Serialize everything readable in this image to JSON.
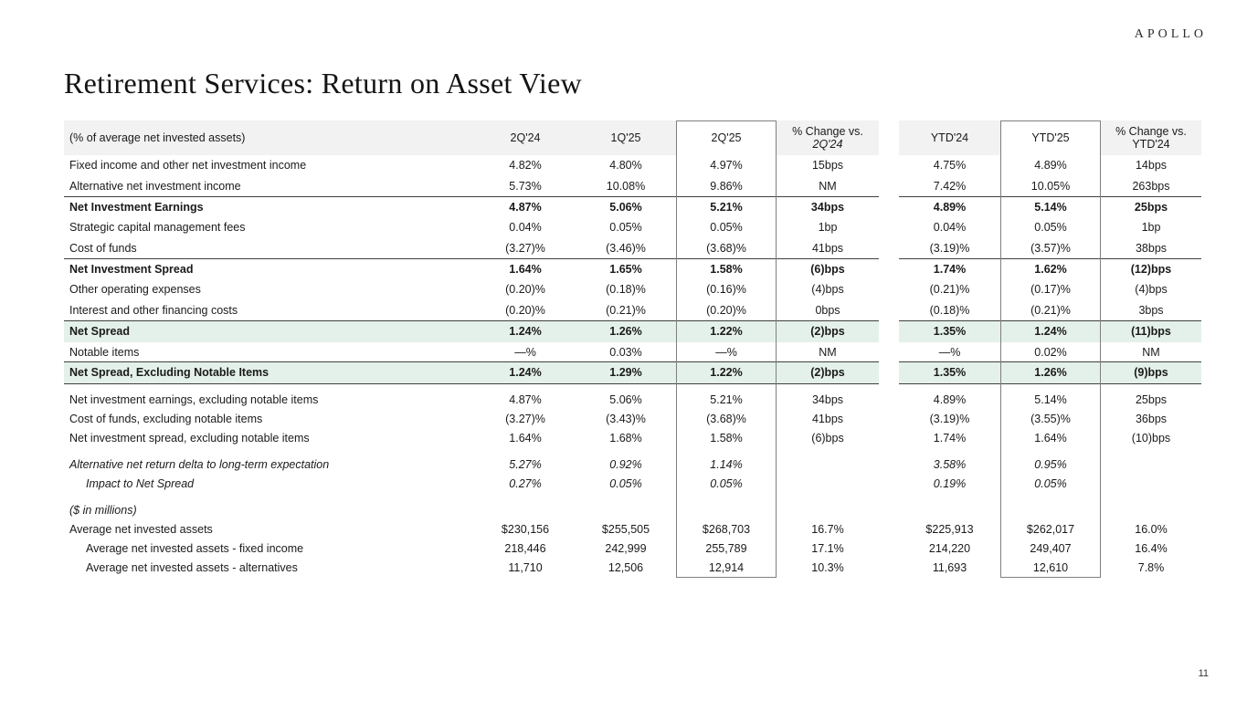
{
  "logo": "APOLLO",
  "title": "Retirement Services: Return on Asset View",
  "page_number": "11",
  "colors": {
    "highlight_row_green": "#e4f1ea",
    "header_gray": "#f2f2f2",
    "section_line": "#404040",
    "column_box_border": "#7f7f7f"
  },
  "table": {
    "header": {
      "label": "(% of average net invested assets)",
      "q224": "2Q'24",
      "q125": "1Q'25",
      "q225": "2Q'25",
      "chg_q": {
        "line1": "% Change vs.",
        "line2": "2Q'24"
      },
      "ytd24": "YTD'24",
      "ytd25": "YTD'25",
      "chg_ytd": {
        "line1": "% Change vs.",
        "line2": "YTD'24"
      }
    },
    "rows": [
      {
        "label": "Fixed income and other net investment income",
        "style": "normal",
        "values": [
          "4.82%",
          "4.80%",
          "4.97%",
          "15bps",
          "4.75%",
          "4.89%",
          "14bps"
        ]
      },
      {
        "label": "Alternative net investment income",
        "style": "normal",
        "values": [
          "5.73%",
          "10.08%",
          "9.86%",
          "NM",
          "7.42%",
          "10.05%",
          "263bps"
        ]
      },
      {
        "label": "Net Investment Earnings",
        "style": "bold",
        "top_border": true,
        "values": [
          "4.87%",
          "5.06%",
          "5.21%",
          "34bps",
          "4.89%",
          "5.14%",
          "25bps"
        ]
      },
      {
        "label": "Strategic capital management fees",
        "style": "normal",
        "values": [
          "0.04%",
          "0.05%",
          "0.05%",
          "1bp",
          "0.04%",
          "0.05%",
          "1bp"
        ]
      },
      {
        "label": "Cost of funds",
        "style": "normal",
        "values": [
          "(3.27)%",
          "(3.46)%",
          "(3.68)%",
          "41bps",
          "(3.19)%",
          "(3.57)%",
          "38bps"
        ]
      },
      {
        "label": "Net Investment Spread",
        "style": "bold",
        "top_border": true,
        "values": [
          "1.64%",
          "1.65%",
          "1.58%",
          "(6)bps",
          "1.74%",
          "1.62%",
          "(12)bps"
        ]
      },
      {
        "label": "Other operating expenses",
        "style": "normal",
        "values": [
          "(0.20)%",
          "(0.18)%",
          "(0.16)%",
          "(4)bps",
          "(0.21)%",
          "(0.17)%",
          "(4)bps"
        ]
      },
      {
        "label": "Interest and other financing costs",
        "style": "normal",
        "values": [
          "(0.20)%",
          "(0.21)%",
          "(0.20)%",
          "0bps",
          "(0.18)%",
          "(0.21)%",
          "3bps"
        ]
      },
      {
        "label": "Net Spread",
        "style": "green",
        "top_border": true,
        "values": [
          "1.24%",
          "1.26%",
          "1.22%",
          "(2)bps",
          "1.35%",
          "1.24%",
          "(11)bps"
        ]
      },
      {
        "label": "Notable items",
        "style": "normal",
        "values": [
          "—%",
          "0.03%",
          "—%",
          "NM",
          "—%",
          "0.02%",
          "NM"
        ]
      },
      {
        "label": "Net Spread, Excluding Notable Items",
        "style": "green",
        "top_border": true,
        "bottom_border": true,
        "values": [
          "1.24%",
          "1.29%",
          "1.22%",
          "(2)bps",
          "1.35%",
          "1.26%",
          "(9)bps"
        ]
      },
      {
        "label": "Net investment earnings, excluding notable items",
        "style": "normal",
        "compact": true,
        "spacer": true,
        "values": [
          "4.87%",
          "5.06%",
          "5.21%",
          "34bps",
          "4.89%",
          "5.14%",
          "25bps"
        ]
      },
      {
        "label": "Cost of funds, excluding notable items",
        "style": "normal",
        "compact": true,
        "values": [
          "(3.27)%",
          "(3.43)%",
          "(3.68)%",
          "41bps",
          "(3.19)%",
          "(3.55)%",
          "36bps"
        ]
      },
      {
        "label": "Net investment spread, excluding notable items",
        "style": "normal",
        "compact": true,
        "values": [
          "1.64%",
          "1.68%",
          "1.58%",
          "(6)bps",
          "1.74%",
          "1.64%",
          "(10)bps"
        ]
      },
      {
        "label": "Alternative net return delta to long-term expectation",
        "style": "italic",
        "compact": true,
        "spacer": true,
        "values": [
          "5.27%",
          "0.92%",
          "1.14%",
          "",
          "3.58%",
          "0.95%",
          ""
        ]
      },
      {
        "label": "Impact to Net Spread",
        "style": "italic2",
        "compact": true,
        "values": [
          "0.27%",
          "0.05%",
          "0.05%",
          "",
          "0.19%",
          "0.05%",
          ""
        ]
      },
      {
        "label": "($ in millions)",
        "style": "italic",
        "compact": true,
        "spacer": true,
        "values": [
          "",
          "",
          "",
          "",
          "",
          "",
          ""
        ]
      },
      {
        "label": "Average net invested assets",
        "style": "normal",
        "compact": true,
        "values": [
          "$230,156",
          "$255,505",
          "$268,703",
          "16.7%",
          "$225,913",
          "$262,017",
          "16.0%"
        ]
      },
      {
        "label": "Average net invested assets - fixed income",
        "style": "indent",
        "compact": true,
        "values": [
          "218,446",
          "242,999",
          "255,789",
          "17.1%",
          "214,220",
          "249,407",
          "16.4%"
        ]
      },
      {
        "label": "Average net invested assets - alternatives",
        "style": "indent",
        "compact": true,
        "values": [
          "11,710",
          "12,506",
          "12,914",
          "10.3%",
          "11,693",
          "12,610",
          "7.8%"
        ]
      }
    ]
  }
}
